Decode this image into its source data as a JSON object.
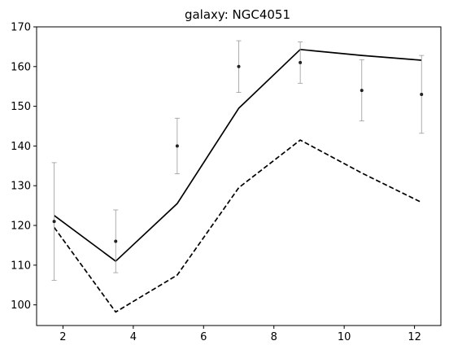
{
  "chart_data": {
    "type": "line",
    "title": "galaxy: NGC4051",
    "xlabel": "",
    "ylabel": "",
    "xlim": [
      1.25,
      12.75
    ],
    "ylim": [
      94.8,
      170
    ],
    "x_ticks": [
      2,
      4,
      6,
      8,
      10,
      12
    ],
    "y_ticks": [
      100,
      110,
      120,
      130,
      140,
      150,
      160,
      170
    ],
    "grid": false,
    "series": [
      {
        "style": "solid",
        "color": "#000000",
        "x": [
          1.75,
          3.5,
          5.25,
          7.0,
          8.75,
          10.5,
          12.2
        ],
        "y": [
          122.5,
          111.0,
          125.5,
          149.5,
          164.3,
          162.8,
          161.6
        ]
      },
      {
        "style": "dashed",
        "color": "#000000",
        "x": [
          1.75,
          3.5,
          5.25,
          7.0,
          8.75,
          10.5,
          12.2
        ],
        "y": [
          119.5,
          98.2,
          107.5,
          129.5,
          141.5,
          133.2,
          125.8
        ]
      },
      {
        "style": "errorbar",
        "color": "#222222",
        "ecolor": "#999999",
        "x": [
          1.75,
          3.5,
          5.25,
          7.0,
          8.75,
          10.5,
          12.2
        ],
        "y": [
          121.0,
          116.0,
          140.0,
          160.0,
          161.0,
          154.0,
          153.0
        ],
        "yerr": [
          14.8,
          7.9,
          7.0,
          6.5,
          5.2,
          7.7,
          9.8
        ]
      }
    ]
  }
}
